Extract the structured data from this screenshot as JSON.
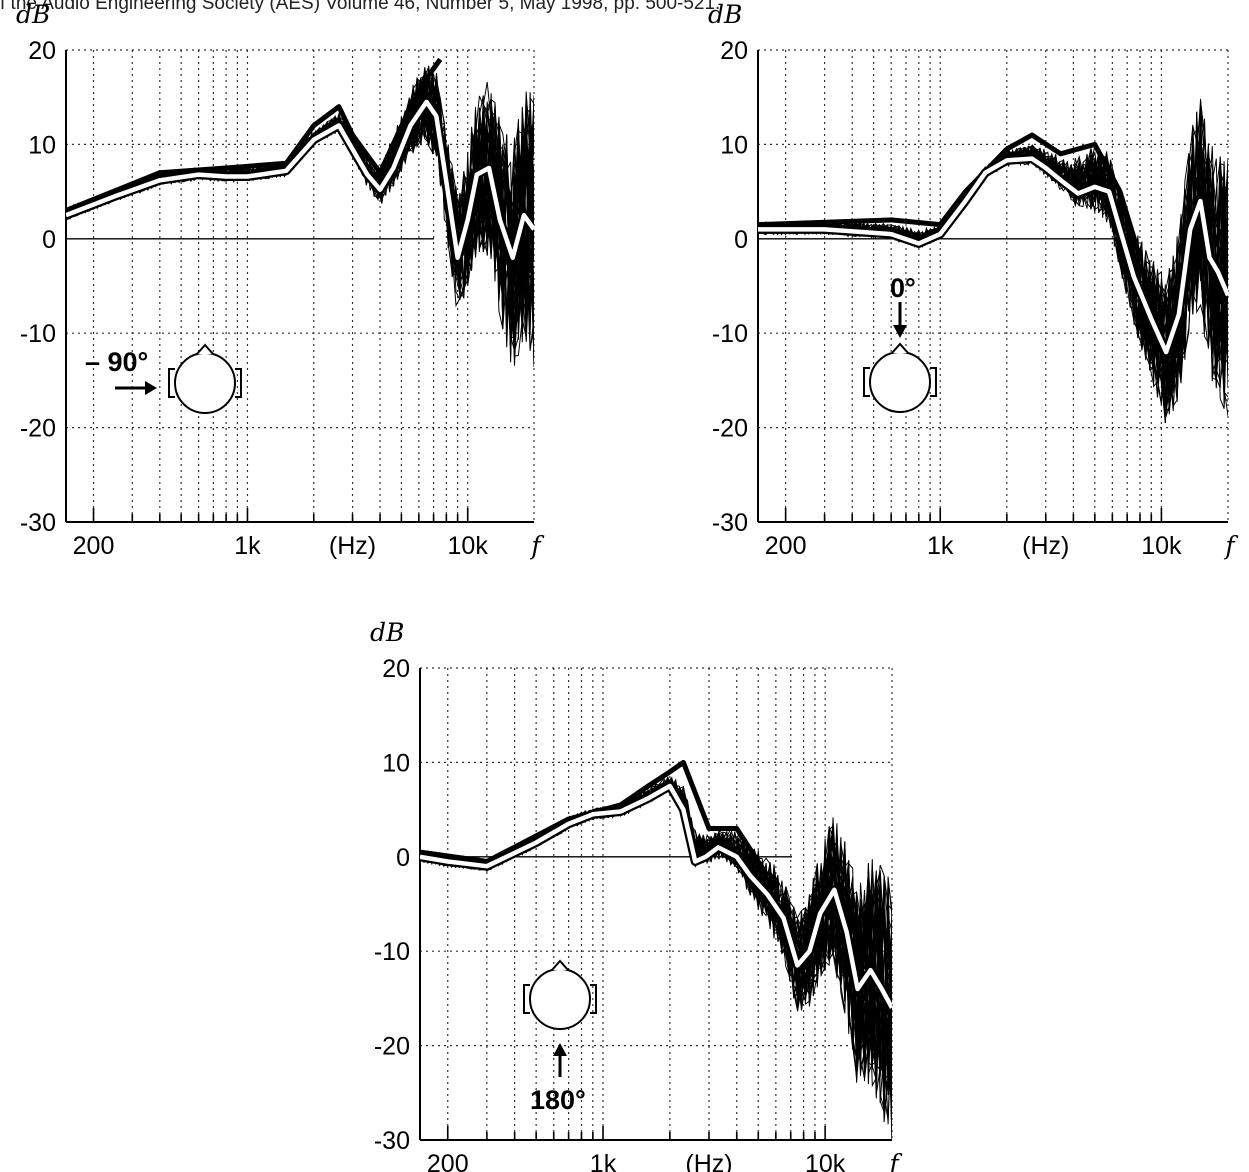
{
  "header": {
    "citation": "f the Audio Engineering Society (AES) Volume 46, Number 5, May 1998, pp. 500-521."
  },
  "chart_data": [
    {
      "type": "line",
      "ylabel": "dB",
      "xlabel": "(Hz)",
      "xaxis_symbol": "f",
      "x_scale": "log",
      "xlim": [
        150,
        20000
      ],
      "ylim": [
        -30,
        20
      ],
      "y_ticks": [
        "20",
        "10",
        "0",
        "-10",
        "-20",
        "-30"
      ],
      "x_ticks": [
        "200",
        "1k",
        "(Hz)",
        "10k"
      ],
      "grid": true,
      "annotation": {
        "angle": "– 90°",
        "direction": "from the left"
      },
      "series": [
        {
          "style": "white-bold",
          "x": [
            150,
            250,
            400,
            600,
            800,
            1000,
            1500,
            2000,
            2600,
            3000,
            3500,
            4000,
            4600,
            5500,
            6500,
            7200,
            8000,
            9000,
            10000,
            11000,
            12500,
            14000,
            16000,
            18000,
            20000
          ],
          "y": [
            2.5,
            4.5,
            6.2,
            6.8,
            6.6,
            6.6,
            7.2,
            10.5,
            12,
            9.5,
            6.8,
            5.2,
            7.5,
            12,
            14.5,
            13,
            6,
            -2,
            2,
            6.8,
            7.5,
            2,
            -2,
            2.5,
            1
          ]
        },
        {
          "style": "black-band",
          "x": [
            150,
            400,
            800,
            1500,
            2000,
            2600,
            3000,
            4000,
            5500,
            6500,
            7500
          ],
          "y": [
            3,
            7,
            7.5,
            8,
            12,
            14,
            11,
            7,
            14,
            17,
            19
          ]
        }
      ]
    },
    {
      "type": "line",
      "ylabel": "dB",
      "xlabel": "(Hz)",
      "xaxis_symbol": "f",
      "x_scale": "log",
      "xlim": [
        150,
        20000
      ],
      "ylim": [
        -30,
        20
      ],
      "y_ticks": [
        "20",
        "10",
        "0",
        "-10",
        "-20",
        "-30"
      ],
      "x_ticks": [
        "200",
        "1k",
        "(Hz)",
        "10k"
      ],
      "grid": true,
      "annotation": {
        "angle": "0°",
        "direction": "from the front"
      },
      "series": [
        {
          "style": "white-bold",
          "x": [
            150,
            300,
            600,
            800,
            1000,
            1300,
            1600,
            2000,
            2600,
            3000,
            3600,
            4200,
            5000,
            5800,
            6500,
            7500,
            9000,
            10500,
            12000,
            13500,
            15000,
            16500,
            18000,
            20000
          ],
          "y": [
            1,
            1,
            0.5,
            -0.5,
            0.5,
            4,
            7,
            8.3,
            8.5,
            7.5,
            6,
            4.8,
            5.5,
            5,
            1,
            -4,
            -8.5,
            -12,
            -8,
            1,
            4,
            -2,
            -3.5,
            -6
          ]
        },
        {
          "style": "black-band",
          "x": [
            150,
            600,
            1000,
            1300,
            2000,
            2600,
            3500,
            5000,
            6500,
            8000
          ],
          "y": [
            1.5,
            2,
            1.5,
            5,
            9.5,
            11,
            9,
            10,
            5,
            -2
          ]
        }
      ]
    },
    {
      "type": "line",
      "ylabel": "dB",
      "xlabel": "(Hz)",
      "xaxis_symbol": "f",
      "x_scale": "log",
      "xlim": [
        150,
        20000
      ],
      "ylim": [
        -30,
        20
      ],
      "y_ticks": [
        "20",
        "10",
        "0",
        "-10",
        "-20",
        "-30"
      ],
      "x_ticks": [
        "200",
        "1k",
        "(Hz)",
        "10k"
      ],
      "grid": true,
      "annotation": {
        "angle": "180°",
        "direction": "from behind"
      },
      "series": [
        {
          "style": "white-bold",
          "x": [
            150,
            200,
            300,
            500,
            700,
            900,
            1200,
            1600,
            2000,
            2300,
            2600,
            2900,
            3300,
            4000,
            4600,
            5500,
            6500,
            7500,
            8500,
            9500,
            11000,
            12500,
            14000,
            16000,
            18000,
            20000
          ],
          "y": [
            0,
            -0.5,
            -1,
            1.5,
            3.5,
            4.5,
            4.8,
            6.2,
            7.5,
            5,
            -0.5,
            0,
            1,
            0,
            -2,
            -4,
            -6.5,
            -11.5,
            -10,
            -6,
            -3.5,
            -8,
            -14,
            -12,
            -14,
            -16
          ]
        },
        {
          "style": "black-band",
          "x": [
            150,
            300,
            700,
            1200,
            1600,
            2000,
            2300,
            3000,
            4000,
            5500
          ],
          "y": [
            0.5,
            -0.5,
            4,
            5.5,
            7.5,
            9,
            10,
            3,
            3,
            -2
          ]
        }
      ]
    }
  ]
}
